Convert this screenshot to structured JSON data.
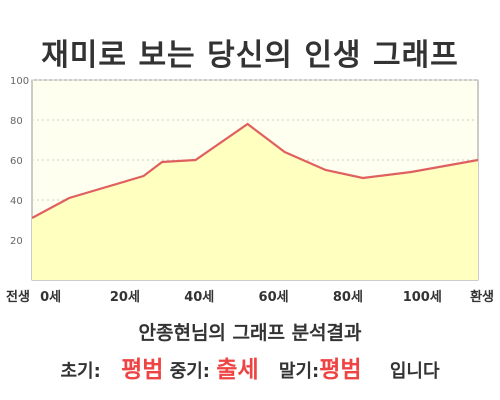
{
  "title": "재미로 보는 당신의 인생 그래프",
  "subtitle": "안종현님의 그래프 분석결과",
  "result": {
    "early_label": "초기:",
    "early_value": "평범",
    "mid_label": "중기:",
    "mid_value": "출세",
    "late_label": "말기:",
    "late_value": "평범",
    "suffix": "입니다"
  },
  "colors": {
    "area_fill": "#ffffc0",
    "line": "#e06060",
    "term": "#ee4444",
    "plot_bg": "#fffff0"
  },
  "chart_data": {
    "type": "area",
    "x_ticks": [
      {
        "x": -5,
        "label": "전생"
      },
      {
        "x": 0,
        "label": "0세"
      },
      {
        "x": 20,
        "label": "20세"
      },
      {
        "x": 40,
        "label": "40세"
      },
      {
        "x": 60,
        "label": "60세"
      },
      {
        "x": 80,
        "label": "80세"
      },
      {
        "x": 100,
        "label": "100세"
      },
      {
        "x": 115,
        "label": "환생"
      }
    ],
    "xlim": [
      -5,
      115
    ],
    "ylim": [
      0,
      100
    ],
    "y_ticks": [
      20,
      40,
      60,
      80,
      100
    ],
    "grid": true,
    "series": [
      {
        "x": [
          -5,
          5,
          25,
          30,
          39,
          53,
          63,
          74,
          84,
          97,
          115
        ],
        "y": [
          31,
          41,
          52,
          59,
          60,
          78,
          64,
          55,
          51,
          54,
          60
        ]
      }
    ]
  }
}
